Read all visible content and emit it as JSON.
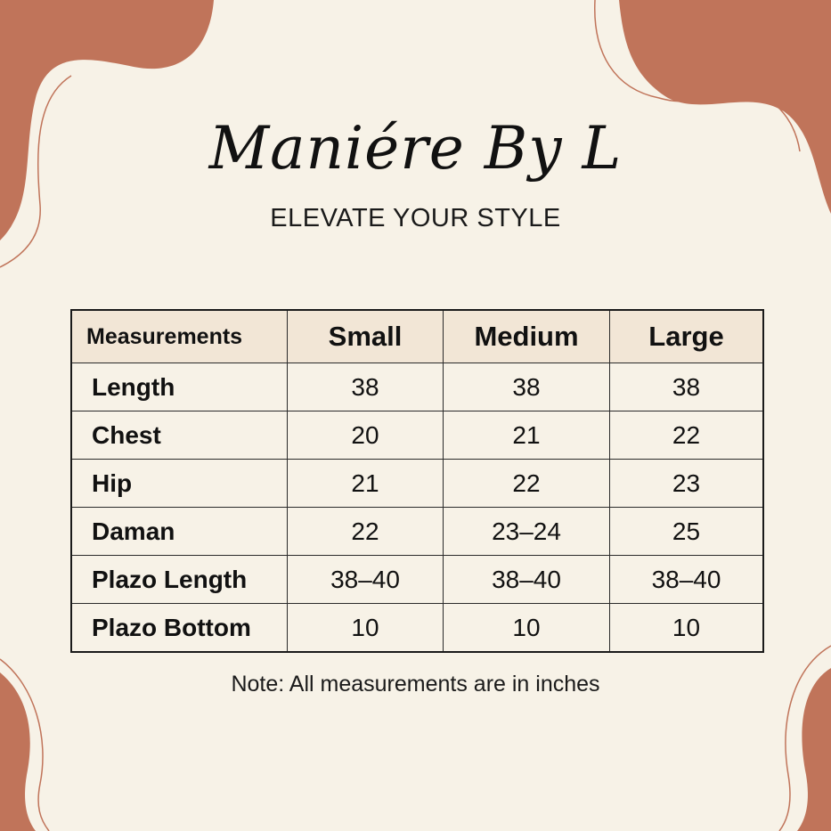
{
  "brand": {
    "title": "Maniére By L",
    "tagline": "ELEVATE YOUR STYLE"
  },
  "colors": {
    "accent": "#c0745a",
    "background": "#f7f2e7",
    "header_fill": "#f2e6d6"
  },
  "table": {
    "headers": [
      "Measurements",
      "Small",
      "Medium",
      "Large"
    ],
    "rows": [
      {
        "label": "Length",
        "values": [
          "38",
          "38",
          "38"
        ]
      },
      {
        "label": "Chest",
        "values": [
          "20",
          "21",
          "22"
        ]
      },
      {
        "label": "Hip",
        "values": [
          "21",
          "22",
          "23"
        ]
      },
      {
        "label": "Daman",
        "values": [
          "22",
          "23–24",
          "25"
        ]
      },
      {
        "label": "Plazo Length",
        "values": [
          "38–40",
          "38–40",
          "38–40"
        ]
      },
      {
        "label": "Plazo Bottom",
        "values": [
          "10",
          "10",
          "10"
        ]
      }
    ]
  },
  "note": "Note: All measurements are in inches"
}
